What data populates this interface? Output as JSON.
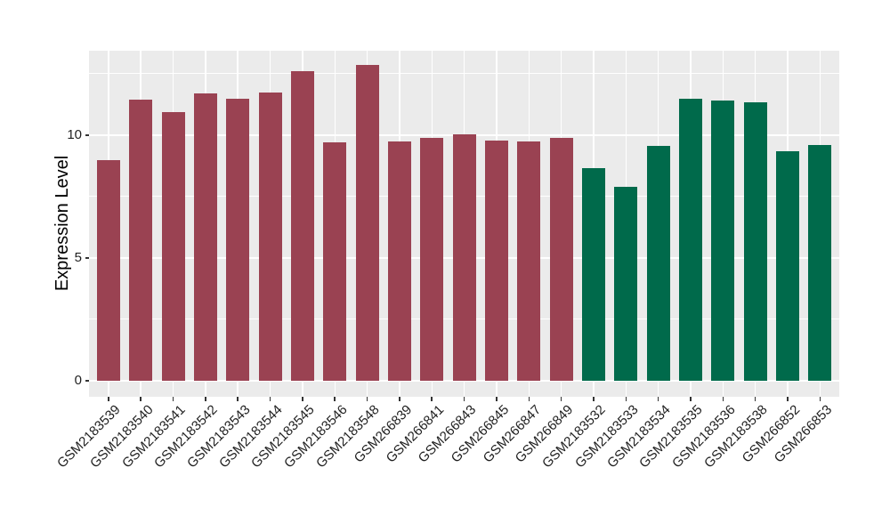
{
  "chart_data": {
    "type": "bar",
    "title": "",
    "xlabel": "",
    "ylabel": "Expression Level",
    "legend": "none",
    "grid": "on",
    "panel_background": "#EBEBEB",
    "gridline_color": "#FFFFFF",
    "categories": [
      "GSM2183539",
      "GSM2183540",
      "GSM2183541",
      "GSM2183542",
      "GSM2183543",
      "GSM2183544",
      "GSM2183545",
      "GSM2183546",
      "GSM2183548",
      "GSM266839",
      "GSM266841",
      "GSM266843",
      "GSM266845",
      "GSM266847",
      "GSM266849",
      "GSM2183532",
      "GSM2183533",
      "GSM2183534",
      "GSM2183535",
      "GSM2183536",
      "GSM2183538",
      "GSM266852",
      "GSM266853"
    ],
    "values": [
      9.0,
      11.45,
      10.95,
      11.7,
      11.5,
      11.75,
      12.6,
      9.7,
      12.85,
      9.75,
      9.9,
      10.05,
      9.8,
      9.75,
      9.9,
      8.65,
      7.9,
      9.55,
      11.5,
      11.4,
      11.35,
      9.35,
      9.6
    ],
    "colors": [
      "#9A4252",
      "#9A4252",
      "#9A4252",
      "#9A4252",
      "#9A4252",
      "#9A4252",
      "#9A4252",
      "#9A4252",
      "#9A4252",
      "#9A4252",
      "#9A4252",
      "#9A4252",
      "#9A4252",
      "#9A4252",
      "#9A4252",
      "#006A4B",
      "#006A4B",
      "#006A4B",
      "#006A4B",
      "#006A4B",
      "#006A4B",
      "#006A4B",
      "#006A4B"
    ],
    "group_colors": {
      "group_1": "#9A4252",
      "group_2": "#006A4B"
    },
    "group_sizes": {
      "group_1": 15,
      "group_2": 8
    },
    "yticks": [
      0,
      5,
      10
    ],
    "ytick_labels": [
      "0",
      "5",
      "10"
    ],
    "grid_major_y": [
      0,
      5,
      10
    ],
    "grid_minor_y": [
      2.5,
      7.5,
      12.5
    ],
    "ylim": [
      -0.65,
      13.45
    ]
  }
}
